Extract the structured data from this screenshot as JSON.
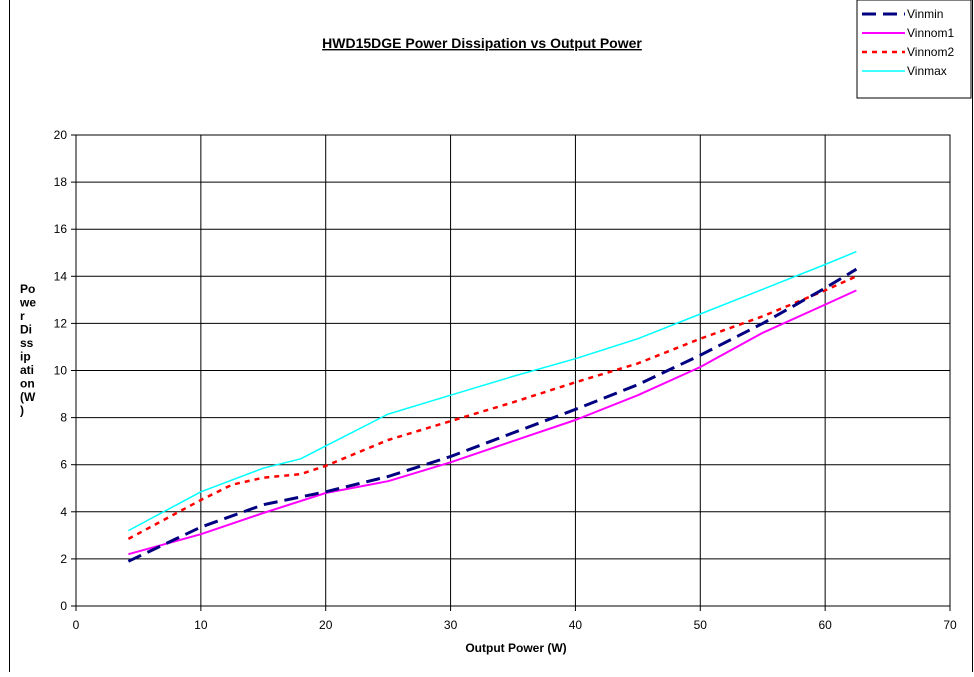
{
  "chart_data": {
    "type": "line",
    "title": "HWD15DGE Power Dissipation vs Output Power",
    "xlabel": "Output Power (W)",
    "ylabel": "Power Dissipation (W)",
    "ylabel_lines": [
      "Po",
      "we",
      "r",
      "Di",
      "ss",
      "ip",
      "ati",
      "on",
      "(W",
      ")"
    ],
    "xlim": [
      0,
      70
    ],
    "ylim": [
      0,
      20
    ],
    "xticks": [
      0,
      10,
      20,
      30,
      40,
      50,
      60,
      70
    ],
    "yticks": [
      0,
      2,
      4,
      6,
      8,
      10,
      12,
      14,
      16,
      18,
      20
    ],
    "grid": true,
    "legend_position": "top-right",
    "series": [
      {
        "name": "Vinmin",
        "color": "#000080",
        "dash": "dashed",
        "x": [
          4.2,
          10,
          15,
          20,
          25,
          30,
          35,
          40,
          45,
          50,
          55,
          60,
          62.5
        ],
        "y": [
          1.9,
          3.35,
          4.3,
          4.85,
          5.5,
          6.35,
          7.35,
          8.35,
          9.4,
          10.65,
          12.0,
          13.5,
          14.3
        ]
      },
      {
        "name": "Vinnom1",
        "color": "#FF00FF",
        "dash": "solid",
        "x": [
          4.2,
          10,
          15,
          20,
          25,
          30,
          35,
          40,
          45,
          50,
          55,
          60,
          62.5
        ],
        "y": [
          2.2,
          3.05,
          3.95,
          4.8,
          5.3,
          6.1,
          7.0,
          7.9,
          8.95,
          10.15,
          11.6,
          12.8,
          13.4
        ]
      },
      {
        "name": "Vinnom2",
        "color": "#FF0000",
        "dash": "dotted",
        "x": [
          4.2,
          10,
          12.5,
          15,
          18,
          20,
          25,
          30,
          35,
          40,
          45,
          50,
          55,
          60,
          62.5
        ],
        "y": [
          2.85,
          4.5,
          5.15,
          5.45,
          5.6,
          5.95,
          7.05,
          7.85,
          8.65,
          9.5,
          10.3,
          11.35,
          12.3,
          13.4,
          14.0
        ]
      },
      {
        "name": "Vinmax",
        "color": "#00FFFF",
        "dash": "solid",
        "x": [
          4.2,
          10,
          15,
          18,
          20,
          25,
          30,
          35,
          40,
          45,
          50,
          55,
          60,
          62.5
        ],
        "y": [
          3.2,
          4.85,
          5.85,
          6.25,
          6.8,
          8.15,
          8.95,
          9.75,
          10.5,
          11.35,
          12.4,
          13.45,
          14.5,
          15.05
        ]
      }
    ]
  }
}
